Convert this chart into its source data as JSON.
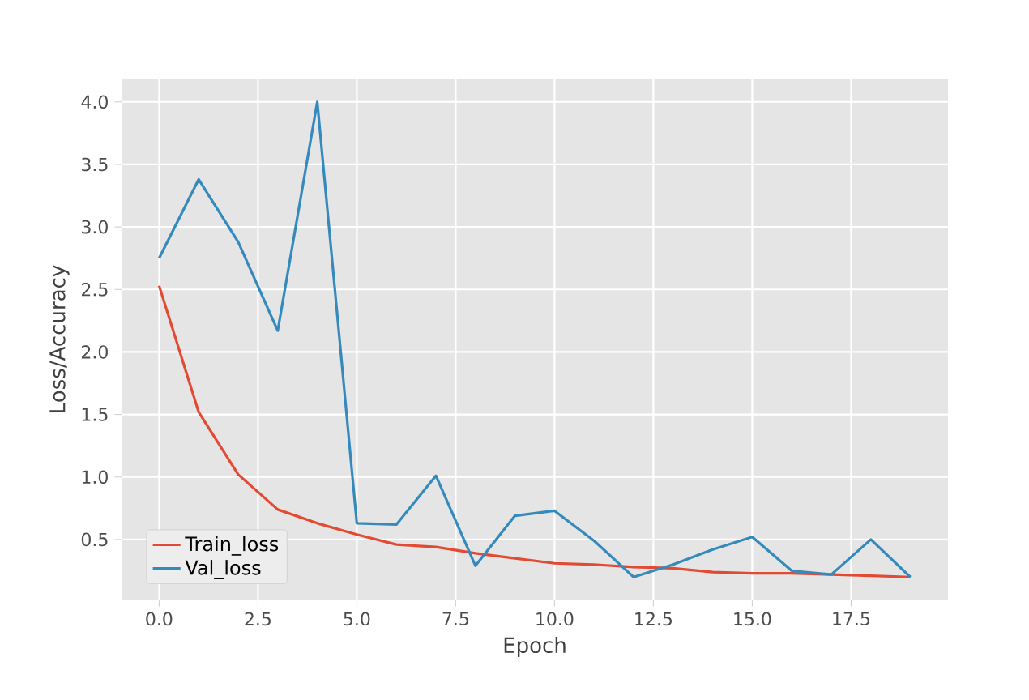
{
  "chart_data": {
    "type": "line",
    "xlabel": "Epoch",
    "ylabel": "Loss/Accuracy",
    "x": [
      0,
      1,
      2,
      3,
      4,
      5,
      6,
      7,
      8,
      9,
      10,
      11,
      12,
      13,
      14,
      15,
      16,
      17,
      18,
      19
    ],
    "series": [
      {
        "name": "Train_loss",
        "color": "#e24a33",
        "values": [
          2.53,
          1.52,
          1.02,
          0.74,
          0.63,
          0.54,
          0.46,
          0.44,
          0.39,
          0.35,
          0.31,
          0.3,
          0.28,
          0.27,
          0.24,
          0.23,
          0.23,
          0.22,
          0.21,
          0.2
        ]
      },
      {
        "name": "Val_loss",
        "color": "#348abd",
        "values": [
          2.75,
          3.38,
          2.88,
          2.17,
          4.0,
          0.63,
          0.62,
          1.01,
          0.29,
          0.69,
          0.73,
          0.49,
          0.2,
          0.3,
          0.42,
          0.52,
          0.25,
          0.22,
          0.5,
          0.2
        ]
      }
    ],
    "xlim": [
      -0.95,
      19.95
    ],
    "ylim": [
      0.02,
      4.18
    ],
    "xticks": [
      {
        "value": 0,
        "label": "0.0"
      },
      {
        "value": 2.5,
        "label": "2.5"
      },
      {
        "value": 5,
        "label": "5.0"
      },
      {
        "value": 7.5,
        "label": "7.5"
      },
      {
        "value": 10,
        "label": "10.0"
      },
      {
        "value": 12.5,
        "label": "12.5"
      },
      {
        "value": 15,
        "label": "15.0"
      },
      {
        "value": 17.5,
        "label": "17.5"
      }
    ],
    "yticks": [
      0.5,
      {
        "value": 1,
        "label": "1.0"
      },
      1.5,
      {
        "value": 2,
        "label": "2.0"
      },
      2.5,
      {
        "value": 3,
        "label": "3.0"
      },
      3.5,
      {
        "value": 4,
        "label": "4.0"
      }
    ],
    "grid": true,
    "legend": "bottom left",
    "line_style": "solid",
    "marker": "none"
  }
}
